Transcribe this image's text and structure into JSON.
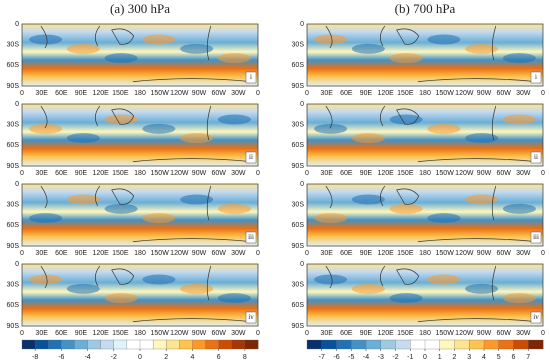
{
  "panels": [
    {
      "title": "(a) 300 hPa",
      "rows": [
        "i",
        "ii",
        "iii",
        "iv"
      ],
      "colorbar": {
        "ticks": [
          -8,
          -6,
          -4,
          -2,
          0,
          2,
          4,
          6,
          8
        ],
        "lim": [
          -9,
          9
        ],
        "colors": [
          "#08306b",
          "#08519c",
          "#2171b5",
          "#4292c6",
          "#6baed6",
          "#9ecae1",
          "#c6dbef",
          "#e0f3f8",
          "#ffffff",
          "#ffffff",
          "#fff7bc",
          "#fee391",
          "#fec44f",
          "#fe9929",
          "#ec7014",
          "#cc4c02",
          "#a63603",
          "#7f2704"
        ]
      }
    },
    {
      "title": "(b) 700 hPa",
      "rows": [
        "i",
        "ii",
        "iii",
        "iv"
      ],
      "colorbar": {
        "ticks": [
          -7,
          -6,
          -5,
          -4,
          -3,
          -2,
          -1,
          0,
          1,
          2,
          3,
          4,
          5,
          6,
          7
        ],
        "lim": [
          -8,
          8
        ],
        "colors": [
          "#08306b",
          "#08519c",
          "#2171b5",
          "#4292c6",
          "#6baed6",
          "#9ecae1",
          "#c6dbef",
          "#ffffff",
          "#ffffff",
          "#fff7bc",
          "#fee391",
          "#fec44f",
          "#fe9929",
          "#ec7014",
          "#cc4c02",
          "#7f2704"
        ]
      }
    }
  ],
  "lat_labels": [
    "0",
    "30S",
    "60S",
    "90S"
  ],
  "lon_labels": [
    "0",
    "30E",
    "60E",
    "90E",
    "120E",
    "150E",
    "180",
    "150W",
    "120W",
    "90W",
    "60W",
    "30W",
    "0"
  ]
}
